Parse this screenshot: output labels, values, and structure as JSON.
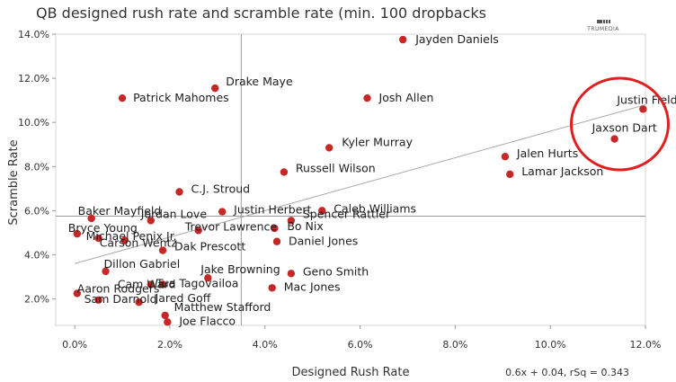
{
  "chart_data": {
    "type": "scatter",
    "title": "QB designed rush rate and scramble rate (min. 100 dropbacks",
    "xlabel": "Designed Rush Rate",
    "ylabel": "Scramble Rate",
    "xlim": [
      -0.4,
      12.0
    ],
    "ylim": [
      0.8,
      14.0
    ],
    "x_ticks": [
      0,
      2,
      4,
      6,
      8,
      10,
      12
    ],
    "x_tick_labels": [
      "0.0%",
      "2.0%",
      "4.0%",
      "6.0%",
      "8.0%",
      "10.0%",
      "12.0%"
    ],
    "y_ticks": [
      2,
      4,
      6,
      8,
      10,
      12,
      14
    ],
    "y_tick_labels": [
      "2.0%",
      "4.0%",
      "6.0%",
      "8.0%",
      "10.0%",
      "12.0%",
      "14.0%"
    ],
    "reference_lines": {
      "x_mean": 3.5,
      "y_mean": 5.75
    },
    "trend_line": {
      "slope": 0.6,
      "intercept": 3.6,
      "x_range": [
        0.0,
        12.0
      ]
    },
    "regression_text": "0.6x + 0.04, rSq = 0.343",
    "highlight": [
      "Justin Fields",
      "Jaxson Dart"
    ],
    "highlight_color": "#e02020",
    "point_color": "#c62828",
    "brand": "TRUMEDIA",
    "points": [
      {
        "name": "Jayden Daniels",
        "x": 6.9,
        "y": 13.75
      },
      {
        "name": "Drake Maye",
        "x": 2.95,
        "y": 11.55
      },
      {
        "name": "Patrick Mahomes",
        "x": 1.0,
        "y": 11.1
      },
      {
        "name": "Josh Allen",
        "x": 6.15,
        "y": 11.1
      },
      {
        "name": "Justin Fields",
        "x": 11.95,
        "y": 10.6
      },
      {
        "name": "Jaxson Dart",
        "x": 11.35,
        "y": 9.25
      },
      {
        "name": "Kyler Murray",
        "x": 5.35,
        "y": 8.85
      },
      {
        "name": "Jalen Hurts",
        "x": 9.05,
        "y": 8.45
      },
      {
        "name": "Lamar Jackson",
        "x": 9.15,
        "y": 7.65
      },
      {
        "name": "Russell Wilson",
        "x": 4.4,
        "y": 7.75
      },
      {
        "name": "C.J. Stroud",
        "x": 2.2,
        "y": 6.85
      },
      {
        "name": "Baker Mayfield",
        "x": 0.35,
        "y": 5.65
      },
      {
        "name": "Jordan Love",
        "x": 1.6,
        "y": 5.55
      },
      {
        "name": "Justin Herbert",
        "x": 3.1,
        "y": 5.95
      },
      {
        "name": "Caleb Williams",
        "x": 5.2,
        "y": 6.0
      },
      {
        "name": "Spencer Rattler",
        "x": 4.55,
        "y": 5.55
      },
      {
        "name": "Trevor Lawrence",
        "x": 2.6,
        "y": 5.1
      },
      {
        "name": "Bo Nix",
        "x": 4.2,
        "y": 5.2
      },
      {
        "name": "Bryce Young",
        "x": 0.05,
        "y": 4.95
      },
      {
        "name": "Michael Penix Jr.",
        "x": 0.5,
        "y": 4.75
      },
      {
        "name": "Daniel Jones",
        "x": 4.25,
        "y": 4.6
      },
      {
        "name": "Carson Wentz",
        "x": 1.05,
        "y": 4.65
      },
      {
        "name": "Dak Prescott",
        "x": 1.85,
        "y": 4.2
      },
      {
        "name": "Dillon Gabriel",
        "x": 0.65,
        "y": 3.25
      },
      {
        "name": "Jake Browning",
        "x": 2.8,
        "y": 2.95
      },
      {
        "name": "Geno Smith",
        "x": 4.55,
        "y": 3.15
      },
      {
        "name": "Cam Ward",
        "x": 1.6,
        "y": 2.65
      },
      {
        "name": "Tua Tagovailoa",
        "x": 1.85,
        "y": 2.65
      },
      {
        "name": "Aaron Rodgers",
        "x": 0.05,
        "y": 2.25
      },
      {
        "name": "Mac Jones",
        "x": 4.15,
        "y": 2.5
      },
      {
        "name": "Sam Darnold",
        "x": 0.5,
        "y": 1.95
      },
      {
        "name": "Jared Goff",
        "x": 1.35,
        "y": 1.85
      },
      {
        "name": "Matthew Stafford",
        "x": 1.9,
        "y": 1.25
      },
      {
        "name": "Joe Flacco",
        "x": 1.95,
        "y": 0.95
      }
    ]
  }
}
